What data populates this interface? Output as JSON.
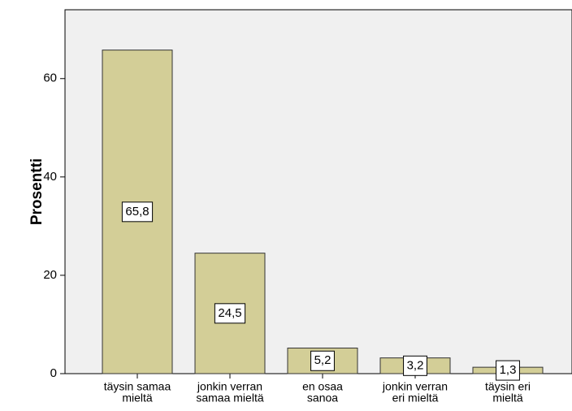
{
  "chart_data": {
    "type": "bar",
    "y_label": "Prosentti",
    "categories": [
      [
        "täysin samaa",
        "mieltä"
      ],
      [
        "jonkin verran",
        "samaa mieltä"
      ],
      [
        "en osaa",
        "sanoa"
      ],
      [
        "jonkin verran",
        "eri mieltä"
      ],
      [
        "täysin eri",
        "mieltä"
      ]
    ],
    "values": [
      65.8,
      24.5,
      5.2,
      3.2,
      1.3
    ],
    "value_labels": [
      "65,8",
      "24,5",
      "5,2",
      "3,2",
      "1,3"
    ],
    "color": "#d3ce97",
    "ylim": [
      0,
      74
    ],
    "yticks": [
      0,
      20,
      40,
      60
    ]
  }
}
